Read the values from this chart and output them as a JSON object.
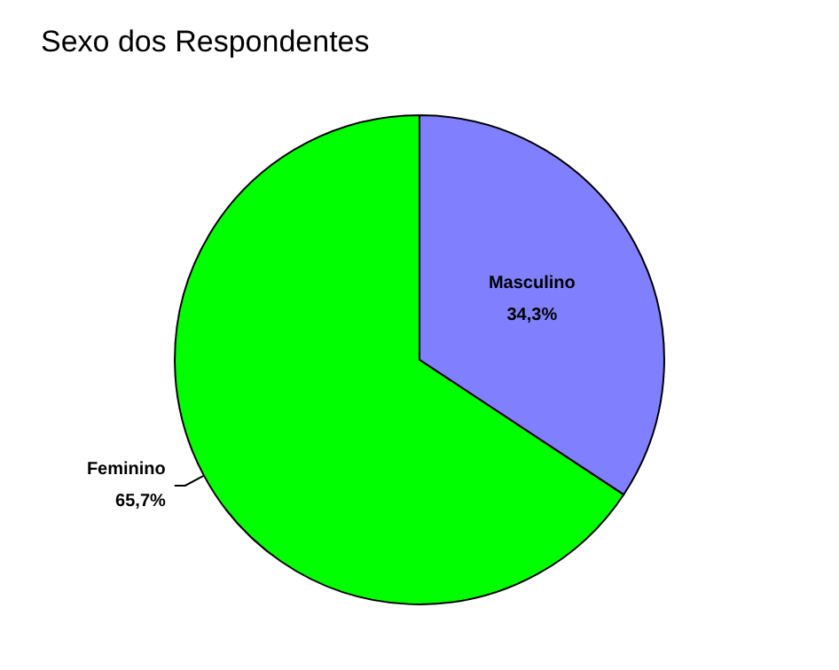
{
  "chart_data": {
    "type": "pie",
    "title": "Sexo dos Respondentes",
    "categories": [
      "Masculino",
      "Feminino"
    ],
    "values": [
      34.3,
      65.7
    ],
    "value_labels": [
      "34,3%",
      "65,7%"
    ],
    "colors": [
      "#8080ff",
      "#00ff00"
    ],
    "legend": false
  }
}
